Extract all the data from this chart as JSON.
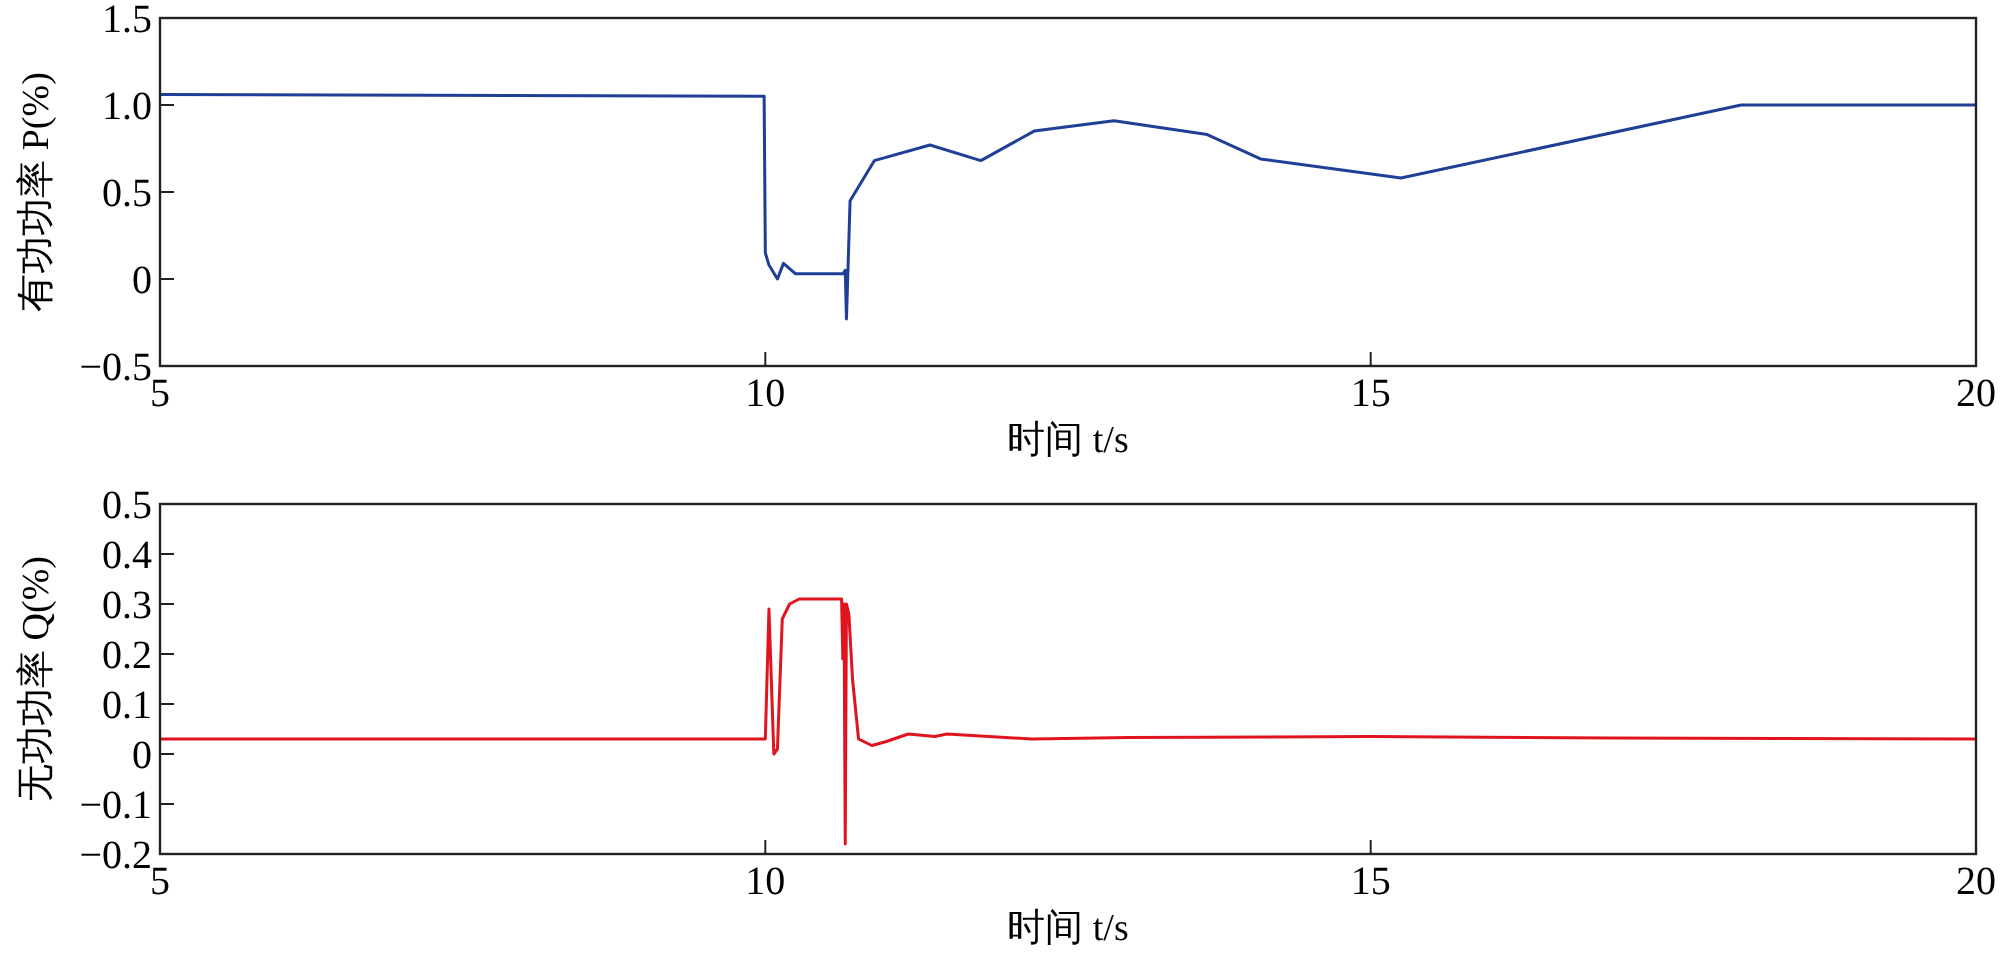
{
  "chart_data": [
    {
      "type": "line",
      "xlabel": "时间 t/s",
      "ylabel": "有功功率 P(%)",
      "xlim": [
        5,
        20
      ],
      "ylim": [
        -0.5,
        1.5
      ],
      "xticks": [
        5,
        10,
        15,
        20
      ],
      "yticks": [
        {
          "value": -0.5,
          "label": "−0.5"
        },
        0,
        0.5,
        {
          "value": 1,
          "label": "1.0"
        },
        1.5
      ],
      "grid": false,
      "series": [
        {
          "color": "#1f3f97",
          "x": [
            5,
            9.99,
            10.0,
            10.03,
            10.1,
            10.15,
            10.25,
            10.64,
            10.66,
            10.67,
            10.7,
            10.9,
            11.36,
            11.78,
            12.22,
            12.88,
            13.65,
            14.09,
            15.25,
            18.06,
            20
          ],
          "values": [
            1.06,
            1.05,
            0.15,
            0.08,
            0.0,
            0.09,
            0.03,
            0.03,
            0.05,
            -0.23,
            0.45,
            0.68,
            0.77,
            0.68,
            0.85,
            0.91,
            0.83,
            0.69,
            0.58,
            1.0,
            1.0
          ]
        }
      ]
    },
    {
      "type": "line",
      "xlabel": "时间 t/s",
      "ylabel": "无功功率 Q(%)",
      "xlim": [
        5,
        20
      ],
      "ylim": [
        -0.2,
        0.5
      ],
      "xticks": [
        5,
        10,
        15,
        20
      ],
      "yticks": [
        {
          "value": -0.2,
          "label": "−0.2"
        },
        {
          "value": -0.1,
          "label": "−0.1"
        },
        0,
        0.1,
        0.2,
        0.3,
        0.4,
        0.5
      ],
      "grid": false,
      "series": [
        {
          "color": "#e0141e",
          "x": [
            5,
            9.99,
            10.0,
            10.03,
            10.07,
            10.1,
            10.14,
            10.2,
            10.28,
            10.63,
            10.64,
            10.65,
            10.66,
            10.67,
            10.69,
            10.72,
            10.77,
            10.88,
            11.0,
            11.18,
            11.4,
            11.5,
            12.2,
            13.0,
            15.0,
            17.0,
            20
          ],
          "values": [
            0.03,
            0.03,
            0.03,
            0.29,
            0.0,
            0.01,
            0.27,
            0.3,
            0.31,
            0.31,
            0.19,
            0.3,
            -0.18,
            0.3,
            0.28,
            0.15,
            0.03,
            0.017,
            0.025,
            0.04,
            0.035,
            0.04,
            0.03,
            0.033,
            0.035,
            0.032,
            0.03
          ]
        }
      ]
    }
  ]
}
